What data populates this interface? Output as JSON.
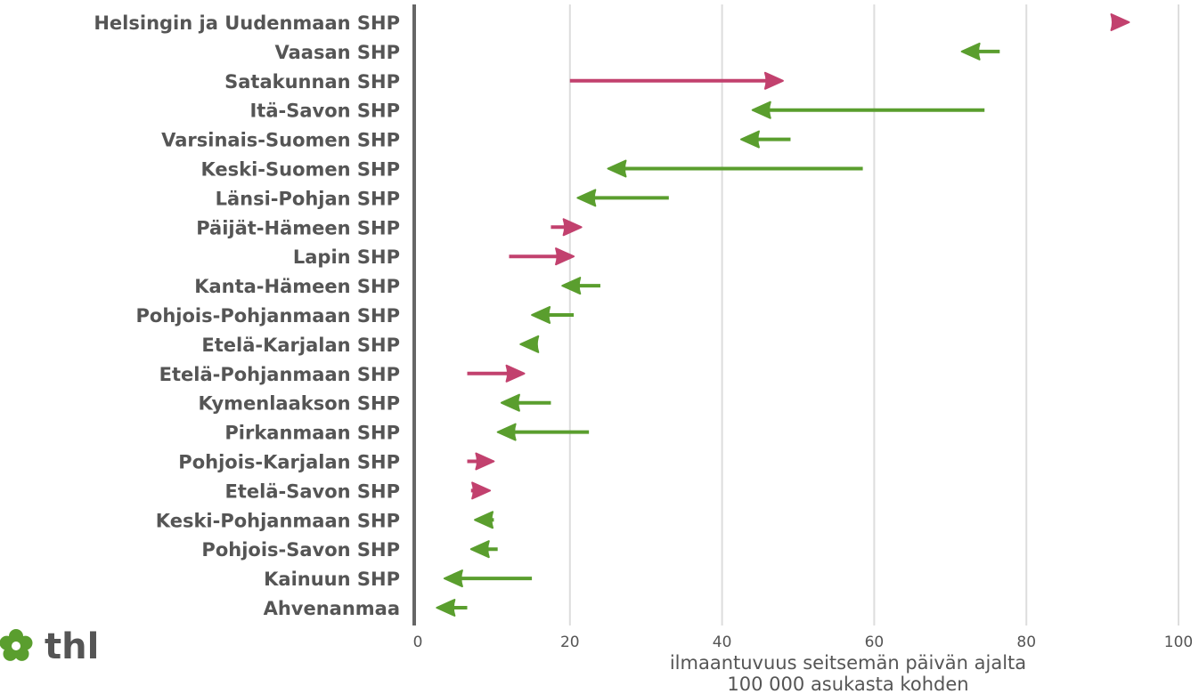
{
  "chart_data": {
    "type": "arrow",
    "categories": [
      "Helsingin ja Uudenmaan SHP",
      "Vaasan SHP",
      "Satakunnan SHP",
      "Itä-Savon SHP",
      "Varsinais-Suomen SHP",
      "Keski-Suomen SHP",
      "Länsi-Pohjan SHP",
      "Päijät-Hämeen SHP",
      "Lapin SHP",
      "Kanta-Hämeen SHP",
      "Pohjois-Pohjanmaan SHP",
      "Etelä-Karjalan SHP",
      "Etelä-Pohjanmaan SHP",
      "Kymenlaakson SHP",
      "Pirkanmaan SHP",
      "Pohjois-Karjalan SHP",
      "Etelä-Savon SHP",
      "Keski-Pohjanmaan SHP",
      "Pohjois-Savon SHP",
      "Kainuun SHP",
      "Ahvenanmaa"
    ],
    "series": [
      {
        "from": [
          91.5,
          76.5,
          20.0,
          74.5,
          49.0,
          58.5,
          33.0,
          17.5,
          12.0,
          24.0,
          20.5,
          15.5,
          6.5,
          17.5,
          22.5,
          6.5,
          7.0,
          10.0,
          10.5,
          15.0,
          6.5
        ],
        "to": [
          93.5,
          71.5,
          48.0,
          44.0,
          42.5,
          25.0,
          21.0,
          21.5,
          20.5,
          19.0,
          15.0,
          13.5,
          14.0,
          11.0,
          10.5,
          10.0,
          9.5,
          7.5,
          7.0,
          3.5,
          2.5
        ]
      }
    ],
    "colors": {
      "increase": "#c2416e",
      "decrease": "#5a9e2e",
      "axis": "#666666",
      "grid": "#dddddd"
    },
    "xlim": [
      0,
      100
    ],
    "xticks": [
      "0",
      "20",
      "40",
      "60",
      "80",
      "100"
    ],
    "xlabel_lines": [
      "ilmaantuvuus seitsemän päivän ajalta",
      "100 000 asukasta kohden"
    ],
    "grid": true
  },
  "logo": {
    "text": "thl",
    "icon": "flower-icon"
  }
}
